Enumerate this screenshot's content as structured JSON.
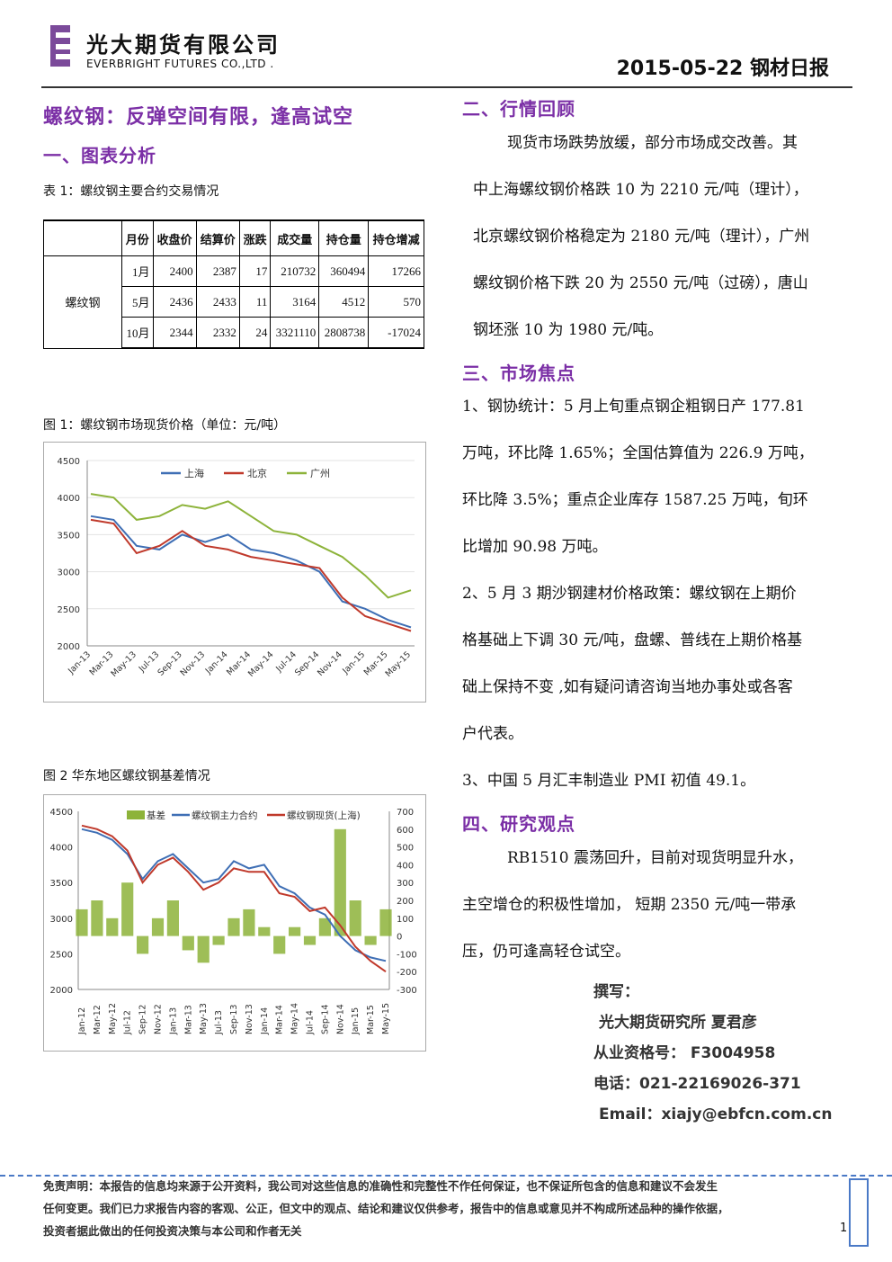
{
  "header": {
    "company_cn": "光大期货有限公司",
    "company_en": "EVERBRIGHT FUTURES CO.,LTD .",
    "report_title": "2015-05-22 钢材日报"
  },
  "left": {
    "headline": "螺纹钢：反弹空间有限，逢高试空",
    "section1": "一、图表分析",
    "table_caption": "表 1：螺纹钢主要合约交易情况",
    "table": {
      "headers": [
        "月份",
        "收盘价",
        "结算价",
        "涨跌",
        "成交量",
        "持仓量",
        "持仓增减"
      ],
      "product": "螺纹钢",
      "rows": [
        [
          "1月",
          "2400",
          "2387",
          "17",
          "210732",
          "360494",
          "17266"
        ],
        [
          "5月",
          "2436",
          "2433",
          "11",
          "3164",
          "4512",
          "570"
        ],
        [
          "10月",
          "2344",
          "2332",
          "24",
          "3321110",
          "2808738",
          "-17024"
        ]
      ]
    },
    "fig1_caption": "图 1：螺纹钢市场现货价格（单位：元/吨）",
    "fig2_caption": "图 2  华东地区螺纹钢基差情况"
  },
  "chart_data": [
    {
      "type": "line",
      "x": [
        "Jan-13",
        "Mar-13",
        "May-13",
        "Jul-13",
        "Sep-13",
        "Nov-13",
        "Jan-14",
        "Mar-14",
        "May-14",
        "Jul-14",
        "Sep-14",
        "Nov-14",
        "Jan-15",
        "Mar-15",
        "May-15"
      ],
      "y_ticks": [
        "4500",
        "4000",
        "3500",
        "3000",
        "2500",
        "2000"
      ],
      "ylim": [
        2000,
        4500
      ],
      "series": [
        {
          "name": "上海",
          "color": "#3f6fb5",
          "values": [
            3750,
            3700,
            3350,
            3300,
            3500,
            3400,
            3500,
            3300,
            3250,
            3150,
            3000,
            2600,
            2500,
            2350,
            2250
          ]
        },
        {
          "name": "北京",
          "color": "#c0392b",
          "values": [
            3700,
            3650,
            3250,
            3350,
            3550,
            3350,
            3300,
            3200,
            3150,
            3100,
            3050,
            2650,
            2400,
            2300,
            2200
          ]
        },
        {
          "name": "广州",
          "color": "#8db33a",
          "values": [
            4050,
            4000,
            3700,
            3750,
            3900,
            3850,
            3950,
            3750,
            3550,
            3500,
            3350,
            3200,
            2950,
            2650,
            2750
          ]
        }
      ]
    },
    {
      "type": "line",
      "x": [
        "Jan-12",
        "Mar-12",
        "May-12",
        "Jul-12",
        "Sep-12",
        "Nov-12",
        "Jan-13",
        "Mar-13",
        "May-13",
        "Jul-13",
        "Sep-13",
        "Nov-13",
        "Jan-14",
        "Mar-14",
        "May-14",
        "Jul-14",
        "Sep-14",
        "Nov-14",
        "Jan-15",
        "Mar-15",
        "May-15"
      ],
      "y_left_ticks": [
        "4500",
        "4000",
        "3500",
        "3000",
        "2500",
        "2000"
      ],
      "y_right_ticks": [
        "700",
        "600",
        "500",
        "400",
        "300",
        "200",
        "100",
        "0",
        "-100",
        "-200",
        "-300"
      ],
      "ylim_left": [
        2000,
        4500
      ],
      "ylim_right": [
        -300,
        700
      ],
      "series": [
        {
          "name": "基差",
          "color": "#8db33a",
          "axis": "right",
          "style": "bar",
          "values": [
            150,
            200,
            100,
            300,
            -100,
            100,
            200,
            -80,
            -150,
            -50,
            100,
            150,
            50,
            -100,
            50,
            -50,
            100,
            600,
            200,
            -50,
            150
          ]
        },
        {
          "name": "螺纹钢主力合约",
          "color": "#3f6fb5",
          "axis": "left",
          "values": [
            4250,
            4200,
            4100,
            3900,
            3550,
            3800,
            3900,
            3700,
            3500,
            3550,
            3800,
            3700,
            3750,
            3450,
            3350,
            3150,
            3050,
            2750,
            2550,
            2450,
            2400
          ]
        },
        {
          "name": "螺纹钢现货(上海)",
          "color": "#c0392b",
          "axis": "left",
          "values": [
            4300,
            4250,
            4150,
            3950,
            3500,
            3750,
            3850,
            3650,
            3400,
            3500,
            3700,
            3650,
            3650,
            3350,
            3300,
            3100,
            3150,
            2900,
            2600,
            2400,
            2250
          ]
        }
      ]
    }
  ],
  "right": {
    "section2": "二、行情回顾",
    "review_lines": [
      "现货市场跌势放缓，部分市场成交改善。其",
      "中上海螺纹钢价格跌 10 为 2210 元/吨（理计），",
      "北京螺纹钢价格稳定为 2180 元/吨（理计），广州",
      "螺纹钢价格下跌 20 为 2550 元/吨（过磅），唐山",
      "钢坯涨 10 为 1980 元/吨。"
    ],
    "section3": "三、市场焦点",
    "focus_lines": [
      "1、钢协统计：5 月上旬重点钢企粗钢日产 177.81",
      "万吨，环比降 1.65%；全国估算值为 226.9 万吨，",
      "环比降 3.5%；重点企业库存 1587.25 万吨，旬环",
      "比增加 90.98 万吨。",
      "2、5 月 3 期沙钢建材价格政策：螺纹钢在上期价",
      "格基础上下调 30 元/吨，盘螺、普线在上期价格基",
      "础上保持不变 ,如有疑问请咨询当地办事处或各客",
      "户代表。",
      "3、中国 5 月汇丰制造业 PMI 初值 49.1。"
    ],
    "section4": "四、研究观点",
    "view_lines": [
      "RB1510 震荡回升，目前对现货明显升水，",
      "主空增仓的积极性增加， 短期 2350 元/吨一带承",
      "压，仍可逢高轻仓试空。"
    ],
    "author": {
      "label": "撰写：",
      "name": "光大期货研究所 夏君彦",
      "license": "从业资格号： F3004958",
      "phone": "电话：021-22169026-371",
      "email": "Email：xiajy@ebfcn.com.cn"
    }
  },
  "footer": {
    "disclaimer_lines": [
      "免责声明：本报告的信息均来源于公开资料，我公司对这些信息的准确性和完整性不作任何保证，也不保证所包含的信息和建议不会发生",
      "任何变更。我们已力求报告内容的客观、公正，但文中的观点、结论和建议仅供参考，报告中的信息或意见并不构成所述品种的操作依据，",
      "投资者据此做出的任何投资决策与本公司和作者无关"
    ],
    "page": "1"
  }
}
